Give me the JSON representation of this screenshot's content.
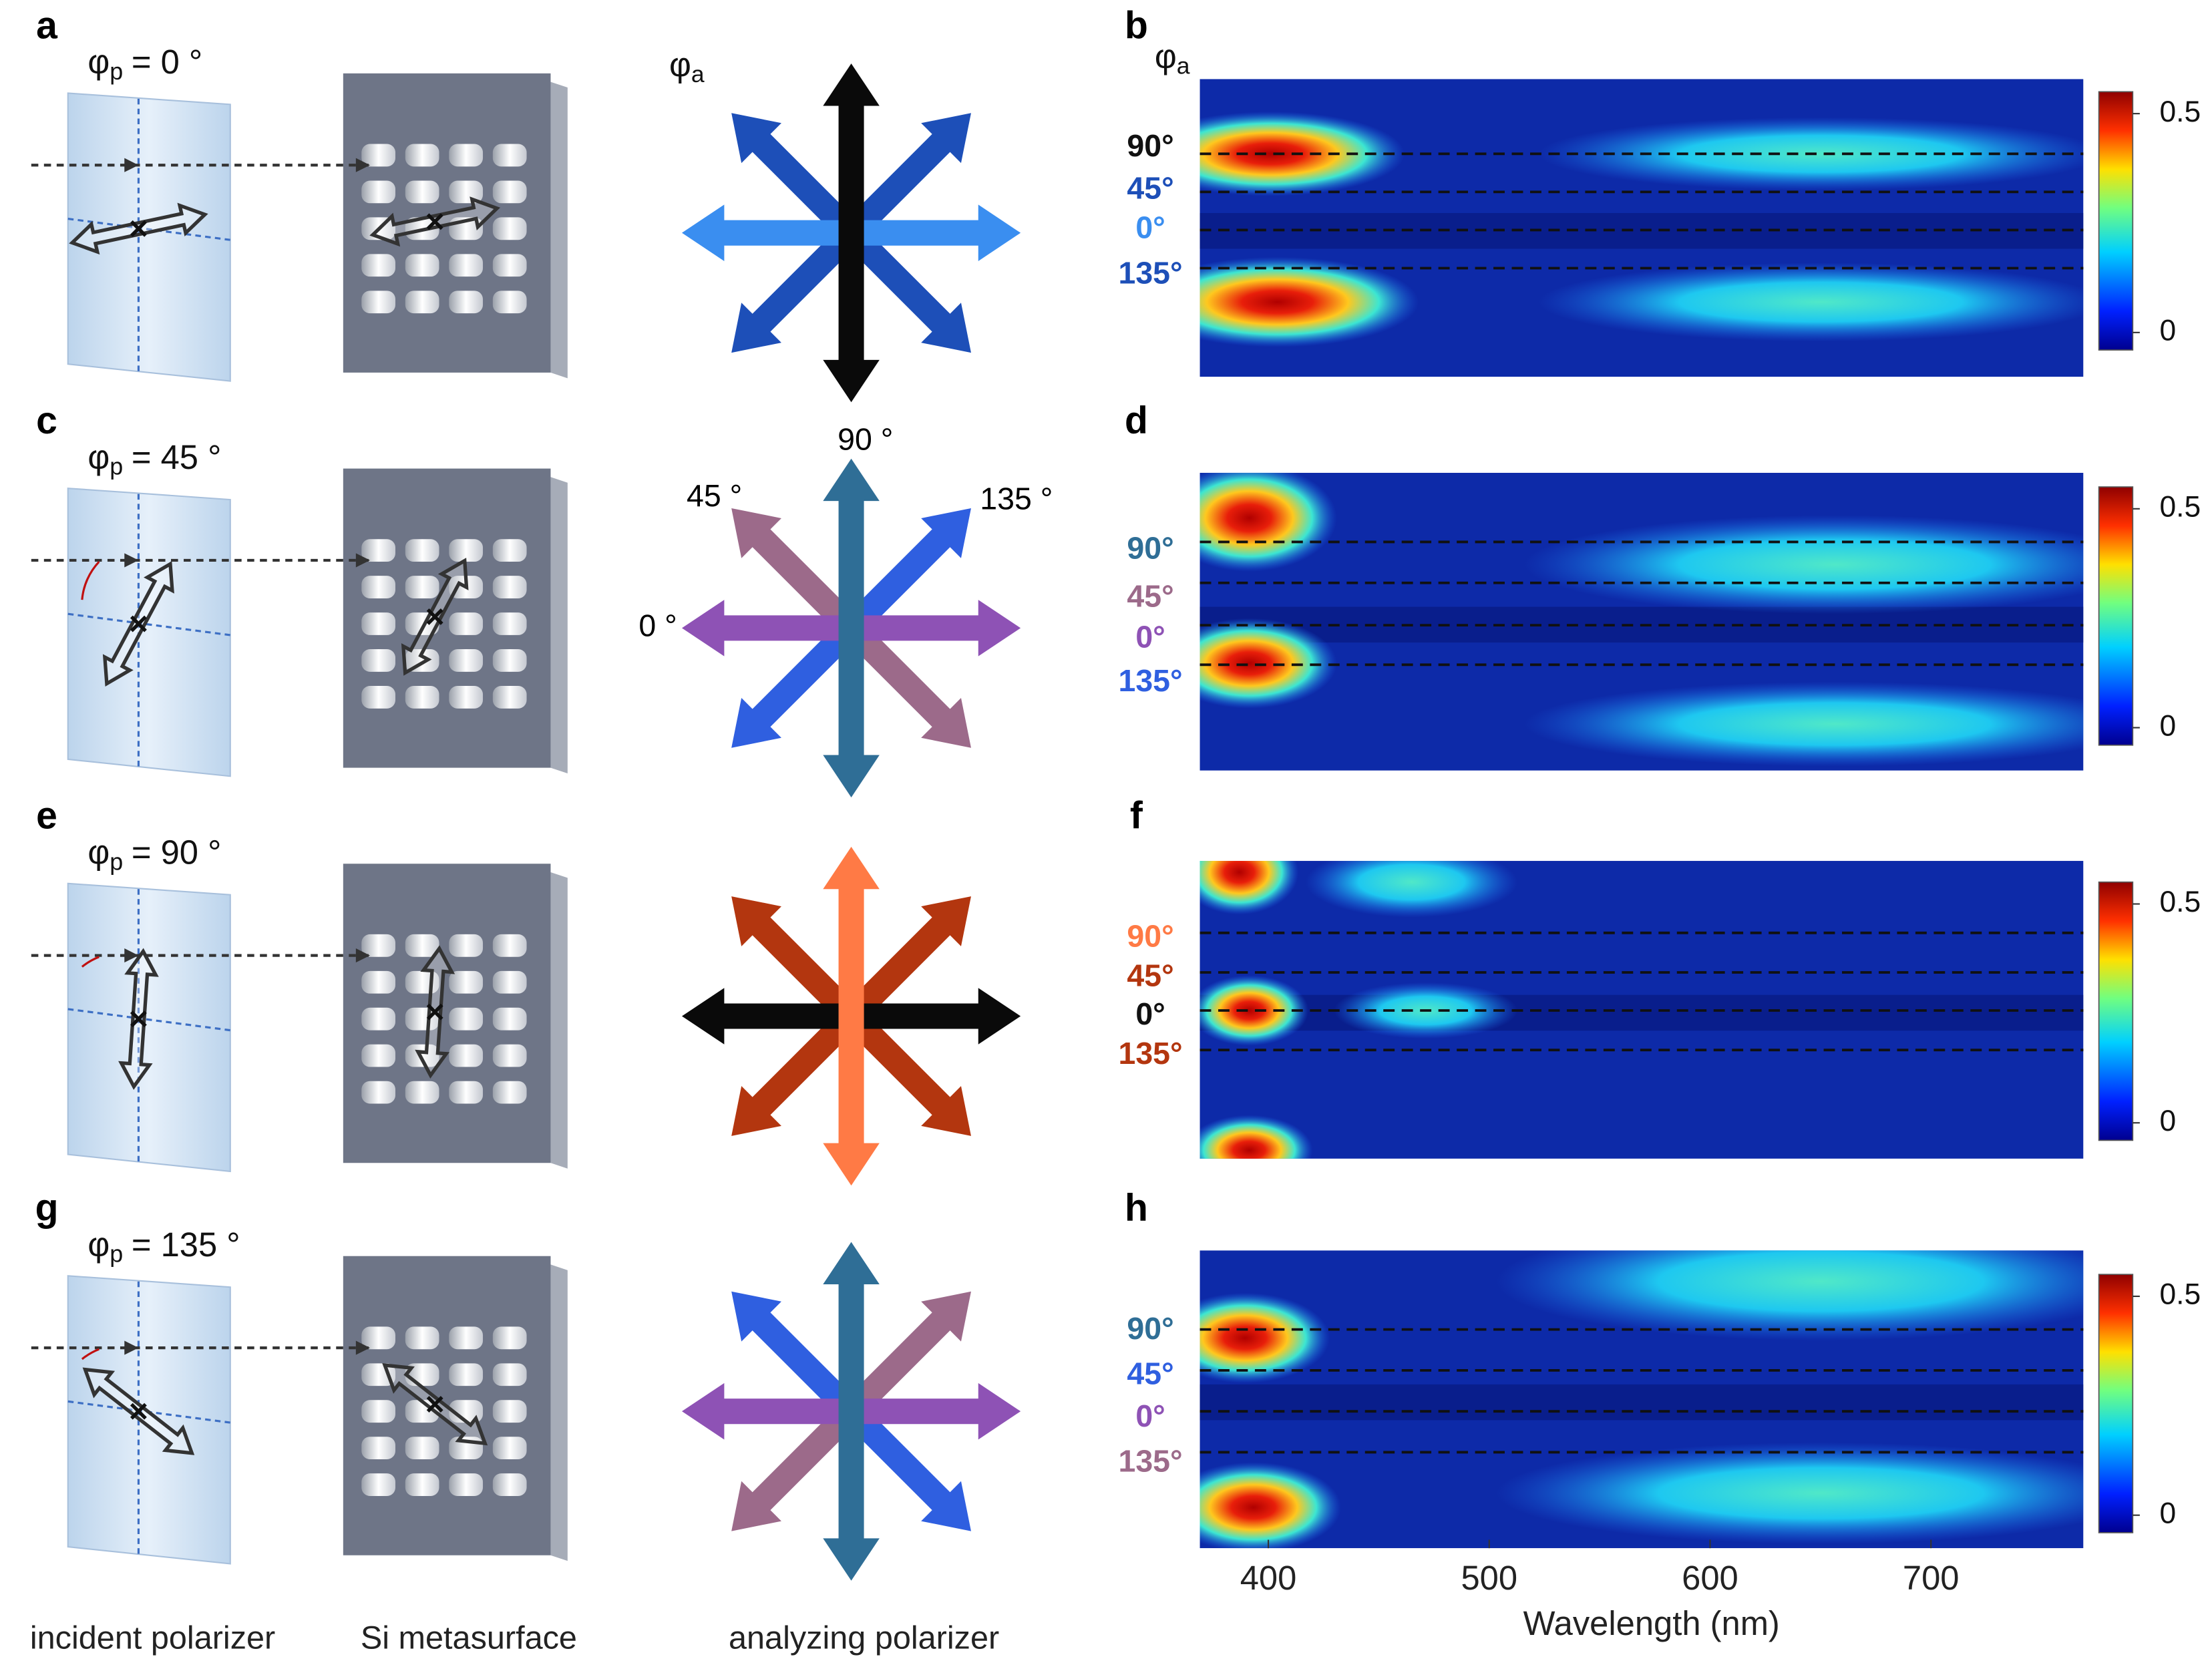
{
  "panels": [
    {
      "letter": "a",
      "incident": {
        "symbol": "φ",
        "subscript": "p",
        "equals": "= 0 °"
      },
      "map_letter": "b",
      "analyzer": {
        "vertical": "#0a0a0a",
        "horizontal": "#3a8ef0",
        "diag_down": "#1d4fb8",
        "diag_up": "#1d4fb8"
      },
      "row_labels": [
        {
          "text": "90°",
          "color": "#111111"
        },
        {
          "text": "45°",
          "color": "#1d4fb8"
        },
        {
          "text": "0°",
          "color": "#3a8ef0"
        },
        {
          "text": "135°",
          "color": "#1d4fb8"
        }
      ]
    },
    {
      "letter": "c",
      "incident": {
        "symbol": "φ",
        "subscript": "p",
        "equals": "= 45 °"
      },
      "map_letter": "d",
      "analyzer": {
        "vertical": "#2f6e96",
        "horizontal": "#8e52b5",
        "diag_down": "#9c6a8a",
        "diag_up": "#2f5fe0"
      },
      "row_labels": [
        {
          "text": "90°",
          "color": "#2f6e96"
        },
        {
          "text": "45°",
          "color": "#9c6a8a"
        },
        {
          "text": "0°",
          "color": "#8e52b5"
        },
        {
          "text": "135°",
          "color": "#2f5fe0"
        }
      ]
    },
    {
      "letter": "e",
      "incident": {
        "symbol": "φ",
        "subscript": "p",
        "equals": "= 90 °"
      },
      "map_letter": "f",
      "analyzer": {
        "vertical": "#ff7a45",
        "horizontal": "#0a0a0a",
        "diag_down": "#b3360f",
        "diag_up": "#b3360f"
      },
      "row_labels": [
        {
          "text": "90°",
          "color": "#ff7a45"
        },
        {
          "text": "45°",
          "color": "#b3360f"
        },
        {
          "text": "0°",
          "color": "#111111"
        },
        {
          "text": "135°",
          "color": "#b3360f"
        }
      ]
    },
    {
      "letter": "g",
      "incident": {
        "symbol": "φ",
        "subscript": "p",
        "equals": "= 135 °"
      },
      "map_letter": "h",
      "analyzer": {
        "vertical": "#2f6e96",
        "horizontal": "#8e52b5",
        "diag_down": "#2f5fe0",
        "diag_up": "#9c6a8a"
      },
      "row_labels": [
        {
          "text": "90°",
          "color": "#2f6e96"
        },
        {
          "text": "45°",
          "color": "#2f5fe0"
        },
        {
          "text": "0°",
          "color": "#8e52b5"
        },
        {
          "text": "135°",
          "color": "#9c6a8a"
        }
      ]
    }
  ],
  "analyzer_header": {
    "symbol": "φ",
    "subscript": "a"
  },
  "map_axis_symbol": {
    "symbol": "φ",
    "subscript": "a"
  },
  "angle_labels": {
    "top": "90 °",
    "upper_left": "45 °",
    "upper_right": "135 °",
    "left": "0 °"
  },
  "x_axis": {
    "label": "Wavelength (nm)",
    "xlim": [
      369,
      769
    ],
    "xticks": [
      400,
      500,
      600,
      700
    ]
  },
  "colorbar": {
    "clim": [
      -0.04,
      0.55
    ],
    "ticks": [
      0,
      0.5
    ]
  },
  "captions": [
    "incident polarizer",
    "Si metasurface",
    "analyzing polarizer"
  ]
}
